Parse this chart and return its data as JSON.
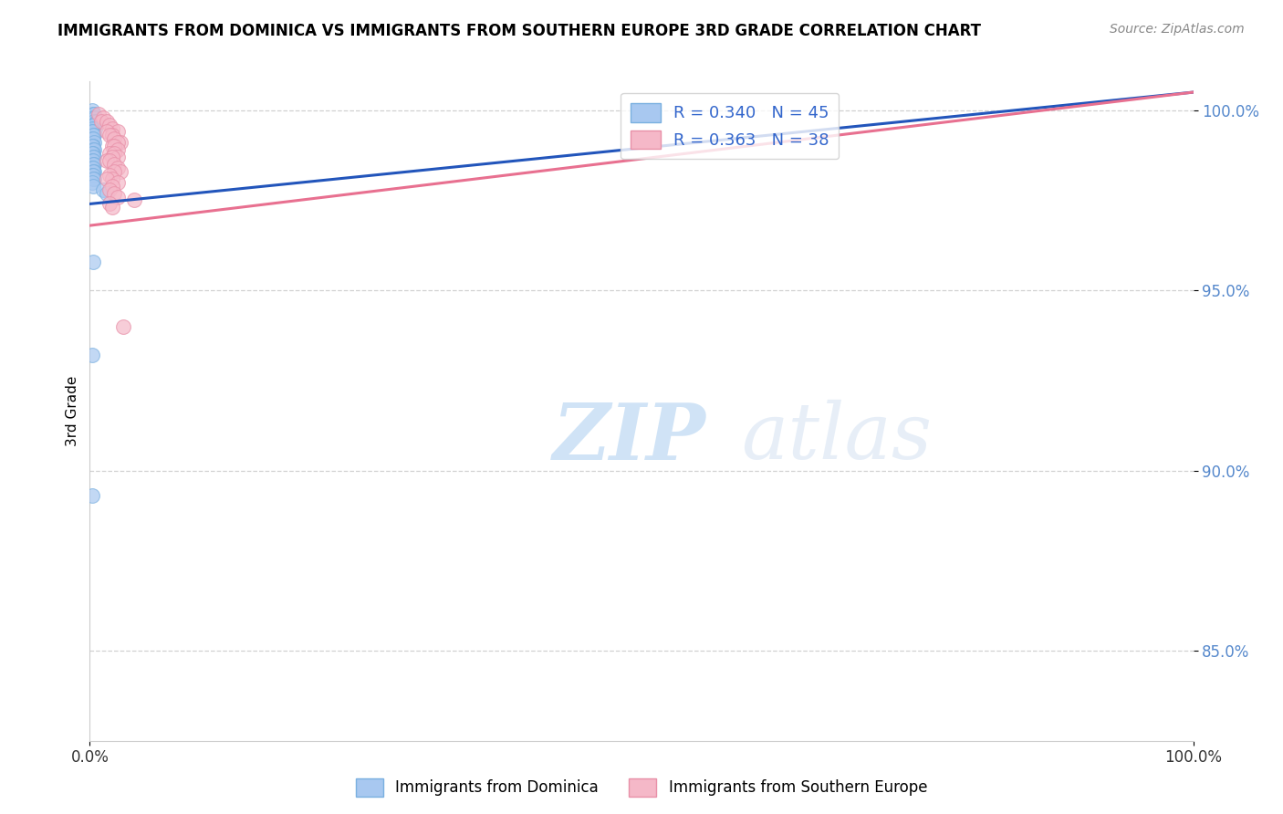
{
  "title": "IMMIGRANTS FROM DOMINICA VS IMMIGRANTS FROM SOUTHERN EUROPE 3RD GRADE CORRELATION CHART",
  "source": "Source: ZipAtlas.com",
  "ylabel_label": "3rd Grade",
  "watermark_zip": "ZIP",
  "watermark_atlas": "atlas",
  "blue_color": "#a8c8f0",
  "blue_edge_color": "#7ab0e0",
  "pink_color": "#f5b8c8",
  "pink_edge_color": "#e890a8",
  "blue_line_color": "#2255bb",
  "pink_line_color": "#e87090",
  "legend_r_blue": "R = 0.340",
  "legend_n_blue": "N = 45",
  "legend_r_pink": "R = 0.363",
  "legend_n_pink": "N = 38",
  "legend_label_blue": "Immigrants from Dominica",
  "legend_label_pink": "Immigrants from Southern Europe",
  "xlim": [
    0.0,
    1.0
  ],
  "ylim": [
    0.825,
    1.008
  ],
  "yticks": [
    0.85,
    0.9,
    0.95,
    1.0
  ],
  "ytick_labels": [
    "85.0%",
    "90.0%",
    "95.0%",
    "100.0%"
  ],
  "xticks": [
    0.0,
    1.0
  ],
  "xtick_labels": [
    "0.0%",
    "100.0%"
  ],
  "blue_scatter_x": [
    0.002,
    0.003,
    0.004,
    0.003,
    0.005,
    0.004,
    0.006,
    0.003,
    0.004,
    0.005,
    0.002,
    0.003,
    0.002,
    0.004,
    0.003,
    0.002,
    0.003,
    0.004,
    0.003,
    0.002,
    0.003,
    0.004,
    0.003,
    0.002,
    0.004,
    0.003,
    0.002,
    0.003,
    0.004,
    0.003,
    0.002,
    0.003,
    0.004,
    0.003,
    0.002,
    0.003,
    0.004,
    0.003,
    0.002,
    0.003,
    0.012,
    0.015,
    0.003,
    0.002,
    0.002
  ],
  "blue_scatter_y": [
    1.0,
    0.999,
    0.999,
    0.998,
    0.998,
    0.997,
    0.997,
    0.996,
    0.996,
    0.995,
    0.995,
    0.994,
    0.994,
    0.993,
    0.993,
    0.992,
    0.992,
    0.991,
    0.99,
    0.99,
    0.989,
    0.989,
    0.988,
    0.988,
    0.987,
    0.987,
    0.986,
    0.986,
    0.985,
    0.985,
    0.984,
    0.984,
    0.983,
    0.983,
    0.982,
    0.982,
    0.981,
    0.981,
    0.98,
    0.979,
    0.978,
    0.977,
    0.958,
    0.932,
    0.893
  ],
  "pink_scatter_x": [
    0.008,
    0.012,
    0.01,
    0.015,
    0.018,
    0.02,
    0.025,
    0.015,
    0.02,
    0.018,
    0.022,
    0.028,
    0.025,
    0.02,
    0.022,
    0.025,
    0.018,
    0.022,
    0.025,
    0.02,
    0.015,
    0.018,
    0.022,
    0.025,
    0.028,
    0.022,
    0.018,
    0.02,
    0.015,
    0.025,
    0.02,
    0.018,
    0.022,
    0.025,
    0.04,
    0.018,
    0.02,
    0.03
  ],
  "pink_scatter_y": [
    0.999,
    0.998,
    0.997,
    0.997,
    0.996,
    0.995,
    0.994,
    0.994,
    0.993,
    0.993,
    0.992,
    0.991,
    0.991,
    0.99,
    0.99,
    0.989,
    0.988,
    0.988,
    0.987,
    0.987,
    0.986,
    0.986,
    0.985,
    0.984,
    0.983,
    0.983,
    0.982,
    0.981,
    0.981,
    0.98,
    0.979,
    0.978,
    0.977,
    0.976,
    0.975,
    0.974,
    0.973,
    0.94
  ],
  "blue_line_x": [
    0.0,
    1.0
  ],
  "blue_line_y": [
    0.974,
    1.005
  ],
  "pink_line_x": [
    0.0,
    1.0
  ],
  "pink_line_y": [
    0.968,
    1.005
  ],
  "title_fontsize": 12,
  "tick_label_color_y": "#5588cc",
  "tick_label_color_x": "#333333",
  "grid_color": "#cccccc",
  "grid_style": "--"
}
